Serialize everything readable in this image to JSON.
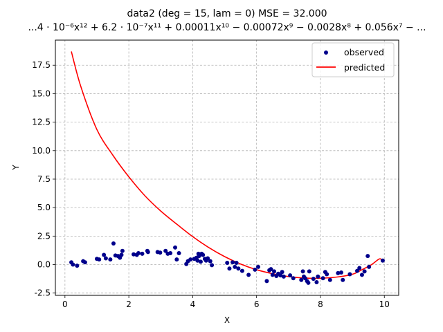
{
  "chart_data": {
    "type": "scatter",
    "title": "data2  (deg = 15, lam = 0) MSE = 32.000",
    "subtitle": "...4 · 10⁻⁶x¹² + 6.2 · 10⁻⁷x¹¹ + 0.00011x¹⁰ − 0.00072x⁹ − 0.0028x⁸ + 0.056x⁷ − ...",
    "xlabel": "X",
    "ylabel": "Y",
    "xlim": [
      -0.3,
      10.45
    ],
    "ylim": [
      -2.7,
      19.7
    ],
    "xticks": [
      0,
      2,
      4,
      6,
      8,
      10
    ],
    "yticks": [
      -2.5,
      0.0,
      2.5,
      5.0,
      7.5,
      10.0,
      12.5,
      15.0,
      17.5
    ],
    "grid": true,
    "legend": "top-right",
    "colors": {
      "observed": "#00008b",
      "predicted": "#ff0000",
      "grid": "#b0b0b0"
    },
    "series": [
      {
        "name": "observed",
        "kind": "scatter",
        "x": [
          0.2,
          0.25,
          0.38,
          0.57,
          0.63,
          1.0,
          1.07,
          1.22,
          1.28,
          1.42,
          1.52,
          1.58,
          1.66,
          1.72,
          1.77,
          1.8,
          2.15,
          2.25,
          2.3,
          2.42,
          2.58,
          2.6,
          2.9,
          2.98,
          3.15,
          3.22,
          3.3,
          3.45,
          3.5,
          3.57,
          3.8,
          3.85,
          3.93,
          4.05,
          4.12,
          4.15,
          4.18,
          4.2,
          4.25,
          4.28,
          4.32,
          4.38,
          4.42,
          4.47,
          4.55,
          4.6,
          5.08,
          5.15,
          5.25,
          5.32,
          5.37,
          5.43,
          5.55,
          5.75,
          5.95,
          6.05,
          6.32,
          6.4,
          6.45,
          6.5,
          6.55,
          6.62,
          6.68,
          6.75,
          6.8,
          6.85,
          7.05,
          7.15,
          7.4,
          7.45,
          7.48,
          7.52,
          7.58,
          7.62,
          7.65,
          7.78,
          7.88,
          7.92,
          8.08,
          8.15,
          8.2,
          8.3,
          8.55,
          8.65,
          8.7,
          8.92,
          9.15,
          9.22,
          9.3,
          9.38,
          9.48,
          9.52,
          9.95
        ],
        "y": [
          0.2,
          0.0,
          -0.1,
          0.3,
          0.2,
          0.5,
          0.45,
          0.85,
          0.55,
          0.45,
          1.85,
          0.8,
          0.75,
          0.6,
          0.85,
          1.2,
          0.9,
          0.85,
          1.0,
          0.95,
          1.2,
          1.1,
          1.1,
          1.05,
          1.2,
          0.95,
          1.0,
          1.5,
          0.45,
          1.0,
          0.05,
          0.3,
          0.45,
          0.5,
          0.6,
          0.35,
          0.95,
          0.75,
          0.25,
          0.95,
          0.85,
          0.5,
          0.35,
          0.55,
          0.3,
          -0.05,
          0.15,
          -0.35,
          0.2,
          -0.2,
          0.15,
          -0.35,
          -0.55,
          -0.9,
          -0.45,
          -0.2,
          -1.45,
          -0.5,
          -0.4,
          -0.9,
          -0.6,
          -1.0,
          -0.8,
          -0.95,
          -0.65,
          -1.05,
          -0.95,
          -1.2,
          -1.35,
          -0.6,
          -1.05,
          -1.2,
          -1.45,
          -1.6,
          -0.6,
          -1.25,
          -1.55,
          -1.05,
          -1.2,
          -0.65,
          -0.85,
          -1.35,
          -0.75,
          -0.7,
          -1.35,
          -0.85,
          -0.55,
          -0.3,
          -0.9,
          -0.6,
          0.75,
          -0.2,
          0.35
        ]
      },
      {
        "name": "predicted",
        "kind": "line",
        "x": [
          0.2,
          0.5,
          1.0,
          1.5,
          2.0,
          2.5,
          3.0,
          3.5,
          4.0,
          4.5,
          5.0,
          5.5,
          6.0,
          6.5,
          7.0,
          7.5,
          8.0,
          8.5,
          9.0,
          9.3,
          9.6,
          9.85,
          9.95
        ],
        "y": [
          18.7,
          15.6,
          11.85,
          9.6,
          7.7,
          6.05,
          4.7,
          3.55,
          2.45,
          1.5,
          0.7,
          0.05,
          -0.45,
          -0.8,
          -1.05,
          -1.18,
          -1.2,
          -1.1,
          -0.85,
          -0.45,
          0.0,
          0.5,
          0.3
        ]
      }
    ]
  }
}
